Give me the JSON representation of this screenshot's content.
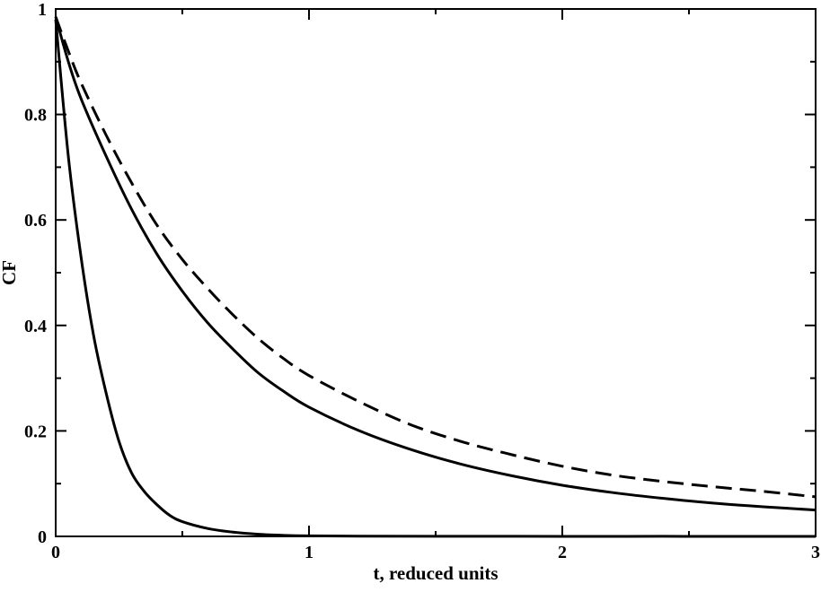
{
  "chart_data": {
    "type": "line",
    "title": "",
    "xlabel": "t, reduced units",
    "ylabel": "CF",
    "xlim": [
      0,
      3
    ],
    "ylim": [
      0,
      1
    ],
    "xticks": [
      0,
      1,
      2,
      3
    ],
    "xtick_labels": [
      "0",
      "1",
      "2",
      "3"
    ],
    "yticks": [
      0,
      0.2,
      0.4,
      0.6,
      0.8,
      1
    ],
    "ytick_labels": [
      "0",
      "0.2",
      "0.4",
      "0.6",
      "0.8",
      "1"
    ],
    "grid": false,
    "legend": "none",
    "line_color": "#000000",
    "series": [
      {
        "style": "solid",
        "x": [
          0,
          0.05,
          0.1,
          0.15,
          0.2,
          0.25,
          0.3,
          0.35,
          0.4,
          0.45,
          0.5,
          0.6,
          0.7,
          0.8,
          0.9,
          1.0,
          1.2,
          1.5,
          2.0,
          2.5,
          3.0
        ],
        "y": [
          0.98,
          0.72,
          0.53,
          0.38,
          0.27,
          0.18,
          0.12,
          0.085,
          0.06,
          0.04,
          0.028,
          0.015,
          0.008,
          0.004,
          0.002,
          0.001,
          0.0005,
          0.0002,
          0.0001,
          0.0001,
          0.0
        ]
      },
      {
        "style": "solid",
        "x": [
          0,
          0.05,
          0.1,
          0.2,
          0.3,
          0.4,
          0.5,
          0.6,
          0.7,
          0.8,
          0.9,
          1.0,
          1.2,
          1.4,
          1.6,
          1.8,
          2.0,
          2.2,
          2.4,
          2.6,
          2.8,
          3.0
        ],
        "y": [
          0.985,
          0.9,
          0.83,
          0.72,
          0.62,
          0.535,
          0.465,
          0.405,
          0.355,
          0.31,
          0.275,
          0.245,
          0.2,
          0.165,
          0.137,
          0.115,
          0.097,
          0.083,
          0.072,
          0.063,
          0.056,
          0.05
        ]
      },
      {
        "style": "dashed",
        "x": [
          0,
          0.05,
          0.1,
          0.2,
          0.3,
          0.4,
          0.5,
          0.6,
          0.7,
          0.8,
          0.9,
          1.0,
          1.2,
          1.4,
          1.6,
          1.8,
          2.0,
          2.2,
          2.4,
          2.6,
          2.8,
          3.0
        ],
        "y": [
          0.985,
          0.92,
          0.86,
          0.76,
          0.67,
          0.59,
          0.525,
          0.47,
          0.42,
          0.375,
          0.337,
          0.305,
          0.255,
          0.212,
          0.18,
          0.155,
          0.133,
          0.116,
          0.104,
          0.094,
          0.085,
          0.075
        ]
      }
    ]
  }
}
